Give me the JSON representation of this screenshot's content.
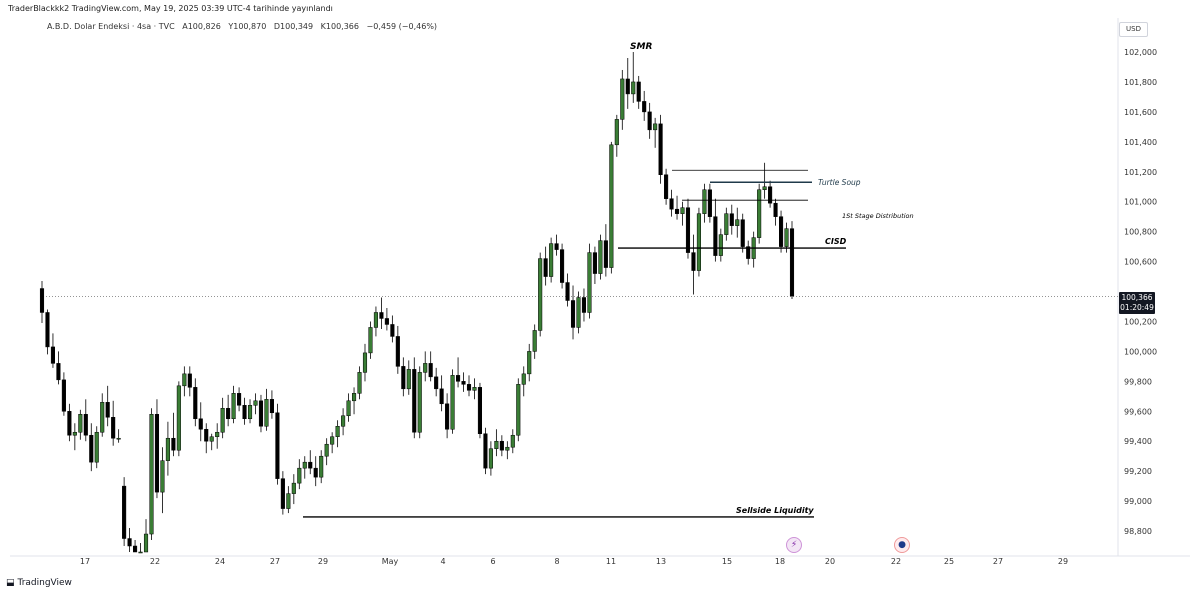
{
  "header": {
    "published": "TraderBlackkk2 TradingView.com, May 19, 2025 03:39 UTC-4 tarihinde yayınlandı"
  },
  "symbol_bar": {
    "name": "A.B.D. Dolar Endeksi · 4sa · TVC",
    "open": "A100,826",
    "high": "Y100,870",
    "low": "D100,349",
    "close": "K100,366",
    "change": "−0,459 (−0,46%)"
  },
  "currency": "USD",
  "last_price": {
    "value": "100,366",
    "countdown": "01:20:49"
  },
  "footer": {
    "brand": "TradingView",
    "logo": "tradingview-logo"
  },
  "events": [
    {
      "icon": "lightning-icon",
      "date": "18"
    },
    {
      "icon": "us-flag-icon",
      "date": "22"
    }
  ],
  "colors": {
    "up": "#3a7d35",
    "down": "#000000",
    "bg": "#ffffff",
    "text": "#131722"
  },
  "chart_data": {
    "type": "candlestick",
    "interval": "4h",
    "ylim": [
      98.75,
      102.15
    ],
    "y_ticks": [
      "102,000",
      "101,800",
      "101,600",
      "101,400",
      "101,200",
      "101,000",
      "100,800",
      "100,600",
      "100,200",
      "100,000",
      "99,800",
      "99,600",
      "99,400",
      "99,200",
      "99,000",
      "98,800"
    ],
    "x_labels": [
      "17",
      "22",
      "24",
      "27",
      "29",
      "May",
      "4",
      "6",
      "8",
      "11",
      "13",
      "15",
      "18",
      "20",
      "22",
      "25",
      "27",
      "29"
    ],
    "annotations": [
      {
        "text": "SMR",
        "price": 102.05
      },
      {
        "text": "Turtle Soup",
        "price": 101.14
      },
      {
        "text": "1St Stage Distribution",
        "price": 100.99
      },
      {
        "text": "CISD",
        "price": 100.69
      },
      {
        "text": "Sellside Liquidity",
        "price": 98.9
      }
    ],
    "candles": [
      [
        100.42,
        100.47,
        100.19,
        100.26
      ],
      [
        100.26,
        100.28,
        99.98,
        100.03
      ],
      [
        100.03,
        100.12,
        99.89,
        99.92
      ],
      [
        99.92,
        100.0,
        99.78,
        99.81
      ],
      [
        99.81,
        99.86,
        99.57,
        99.6
      ],
      [
        99.6,
        99.65,
        99.4,
        99.44
      ],
      [
        99.44,
        99.52,
        99.34,
        99.46
      ],
      [
        99.46,
        99.61,
        99.41,
        99.58
      ],
      [
        99.58,
        99.68,
        99.4,
        99.44
      ],
      [
        99.44,
        99.52,
        99.2,
        99.26
      ],
      [
        99.26,
        99.5,
        99.22,
        99.46
      ],
      [
        99.46,
        99.72,
        99.43,
        99.66
      ],
      [
        99.66,
        99.77,
        99.5,
        99.56
      ],
      [
        99.56,
        99.67,
        99.37,
        99.42
      ],
      [
        99.42,
        99.48,
        99.39,
        99.42
      ],
      [
        99.1,
        99.16,
        98.7,
        98.75
      ],
      [
        98.75,
        98.82,
        98.66,
        98.7
      ],
      [
        98.7,
        98.74,
        98.58,
        98.63
      ],
      [
        98.63,
        98.72,
        98.55,
        98.66
      ],
      [
        98.66,
        98.88,
        98.63,
        98.78
      ],
      [
        98.78,
        99.62,
        98.74,
        99.58
      ],
      [
        99.58,
        99.68,
        99.02,
        99.06
      ],
      [
        99.06,
        99.36,
        98.92,
        99.27
      ],
      [
        99.27,
        99.53,
        99.17,
        99.42
      ],
      [
        99.42,
        99.59,
        99.3,
        99.34
      ],
      [
        99.34,
        99.8,
        99.3,
        99.77
      ],
      [
        99.77,
        99.9,
        99.7,
        99.85
      ],
      [
        99.85,
        99.9,
        99.7,
        99.76
      ],
      [
        99.76,
        99.82,
        99.5,
        99.55
      ],
      [
        99.55,
        99.66,
        99.4,
        99.48
      ],
      [
        99.48,
        99.52,
        99.32,
        99.4
      ],
      [
        99.4,
        99.45,
        99.34,
        99.43
      ],
      [
        99.43,
        99.52,
        99.35,
        99.46
      ],
      [
        99.46,
        99.69,
        99.42,
        99.62
      ],
      [
        99.62,
        99.71,
        99.5,
        99.55
      ],
      [
        99.55,
        99.77,
        99.52,
        99.72
      ],
      [
        99.72,
        99.76,
        99.6,
        99.64
      ],
      [
        99.64,
        99.69,
        99.51,
        99.55
      ],
      [
        99.55,
        99.68,
        99.52,
        99.64
      ],
      [
        99.64,
        99.72,
        99.58,
        99.67
      ],
      [
        99.67,
        99.71,
        99.46,
        99.5
      ],
      [
        99.5,
        99.75,
        99.47,
        99.68
      ],
      [
        99.68,
        99.74,
        99.55,
        99.59
      ],
      [
        99.59,
        99.65,
        99.11,
        99.15
      ],
      [
        99.15,
        99.2,
        98.91,
        98.95
      ],
      [
        98.95,
        99.1,
        98.92,
        99.05
      ],
      [
        99.05,
        99.18,
        98.98,
        99.12
      ],
      [
        99.12,
        99.28,
        99.08,
        99.22
      ],
      [
        99.22,
        99.3,
        99.15,
        99.26
      ],
      [
        99.26,
        99.34,
        99.18,
        99.22
      ],
      [
        99.22,
        99.3,
        99.1,
        99.16
      ],
      [
        99.16,
        99.34,
        99.12,
        99.3
      ],
      [
        99.3,
        99.42,
        99.24,
        99.38
      ],
      [
        99.38,
        99.46,
        99.32,
        99.43
      ],
      [
        99.43,
        99.54,
        99.36,
        99.5
      ],
      [
        99.5,
        99.62,
        99.44,
        99.57
      ],
      [
        99.57,
        99.72,
        99.53,
        99.67
      ],
      [
        99.67,
        99.76,
        99.58,
        99.72
      ],
      [
        99.72,
        99.9,
        99.68,
        99.86
      ],
      [
        99.86,
        100.05,
        99.8,
        99.99
      ],
      [
        99.99,
        100.2,
        99.95,
        100.16
      ],
      [
        100.16,
        100.3,
        100.1,
        100.26
      ],
      [
        100.26,
        100.36,
        100.15,
        100.22
      ],
      [
        100.22,
        100.29,
        100.14,
        100.18
      ],
      [
        100.18,
        100.24,
        100.06,
        100.1
      ],
      [
        100.1,
        100.17,
        99.85,
        99.9
      ],
      [
        99.9,
        99.96,
        99.7,
        99.75
      ],
      [
        99.75,
        99.94,
        99.71,
        99.88
      ],
      [
        99.88,
        99.96,
        99.42,
        99.46
      ],
      [
        99.46,
        99.9,
        99.42,
        99.86
      ],
      [
        99.86,
        100.0,
        99.8,
        99.92
      ],
      [
        99.92,
        100.0,
        99.8,
        99.83
      ],
      [
        99.83,
        99.89,
        99.7,
        99.75
      ],
      [
        99.75,
        99.84,
        99.6,
        99.65
      ],
      [
        99.65,
        99.72,
        99.42,
        99.48
      ],
      [
        99.48,
        99.88,
        99.45,
        99.84
      ],
      [
        99.84,
        99.96,
        99.76,
        99.8
      ],
      [
        99.8,
        99.86,
        99.73,
        99.78
      ],
      [
        99.78,
        99.84,
        99.7,
        99.74
      ],
      [
        99.74,
        99.82,
        99.68,
        99.76
      ],
      [
        99.76,
        99.79,
        99.42,
        99.45
      ],
      [
        99.45,
        99.49,
        99.18,
        99.22
      ],
      [
        99.22,
        99.4,
        99.17,
        99.35
      ],
      [
        99.35,
        99.48,
        99.3,
        99.4
      ],
      [
        99.4,
        99.44,
        99.3,
        99.34
      ],
      [
        99.34,
        99.4,
        99.28,
        99.36
      ],
      [
        99.36,
        99.48,
        99.32,
        99.44
      ],
      [
        99.44,
        99.82,
        99.4,
        99.78
      ],
      [
        99.78,
        99.9,
        99.7,
        99.85
      ],
      [
        99.85,
        100.05,
        99.8,
        100.0
      ],
      [
        100.0,
        100.18,
        99.95,
        100.14
      ],
      [
        100.14,
        100.66,
        100.1,
        100.62
      ],
      [
        100.62,
        100.7,
        100.44,
        100.5
      ],
      [
        100.5,
        100.76,
        100.46,
        100.72
      ],
      [
        100.72,
        100.78,
        100.64,
        100.68
      ],
      [
        100.68,
        100.72,
        100.42,
        100.46
      ],
      [
        100.46,
        100.52,
        100.3,
        100.34
      ],
      [
        100.34,
        100.44,
        100.08,
        100.16
      ],
      [
        100.16,
        100.4,
        100.12,
        100.36
      ],
      [
        100.36,
        100.42,
        100.2,
        100.26
      ],
      [
        100.26,
        100.72,
        100.22,
        100.66
      ],
      [
        100.66,
        100.7,
        100.45,
        100.52
      ],
      [
        100.52,
        100.78,
        100.48,
        100.74
      ],
      [
        100.74,
        100.85,
        100.5,
        100.56
      ],
      [
        100.56,
        101.4,
        100.52,
        101.38
      ],
      [
        101.38,
        101.58,
        101.3,
        101.55
      ],
      [
        101.55,
        101.88,
        101.48,
        101.82
      ],
      [
        101.82,
        101.96,
        101.62,
        101.72
      ],
      [
        101.72,
        102.0,
        101.66,
        101.8
      ],
      [
        101.8,
        101.84,
        101.62,
        101.67
      ],
      [
        101.67,
        101.74,
        101.54,
        101.6
      ],
      [
        101.6,
        101.66,
        101.42,
        101.48
      ],
      [
        101.48,
        101.56,
        101.36,
        101.52
      ],
      [
        101.52,
        101.58,
        101.12,
        101.18
      ],
      [
        101.18,
        101.22,
        100.98,
        101.02
      ],
      [
        101.02,
        101.08,
        100.9,
        100.95
      ],
      [
        100.95,
        101.04,
        100.88,
        100.92
      ],
      [
        100.92,
        101.0,
        100.84,
        100.96
      ],
      [
        100.96,
        101.02,
        100.62,
        100.66
      ],
      [
        100.66,
        100.78,
        100.38,
        100.54
      ],
      [
        100.54,
        100.96,
        100.5,
        100.92
      ],
      [
        100.92,
        101.12,
        100.86,
        101.08
      ],
      [
        101.08,
        101.12,
        100.86,
        100.9
      ],
      [
        100.9,
        101.02,
        100.6,
        100.64
      ],
      [
        100.64,
        100.82,
        100.6,
        100.78
      ],
      [
        100.78,
        100.96,
        100.74,
        100.92
      ],
      [
        100.92,
        100.98,
        100.78,
        100.84
      ],
      [
        100.84,
        100.96,
        100.76,
        100.88
      ],
      [
        100.88,
        100.92,
        100.66,
        100.7
      ],
      [
        100.7,
        100.74,
        100.58,
        100.62
      ],
      [
        100.62,
        100.8,
        100.56,
        100.76
      ],
      [
        100.76,
        101.12,
        100.72,
        101.08
      ],
      [
        101.08,
        101.26,
        101.02,
        101.1
      ],
      [
        101.1,
        101.14,
        100.96,
        100.99
      ],
      [
        100.99,
        101.02,
        100.84,
        100.9
      ],
      [
        100.9,
        100.94,
        100.66,
        100.7
      ],
      [
        100.7,
        100.86,
        100.66,
        100.82
      ],
      [
        100.82,
        100.87,
        100.35,
        100.37
      ]
    ]
  }
}
